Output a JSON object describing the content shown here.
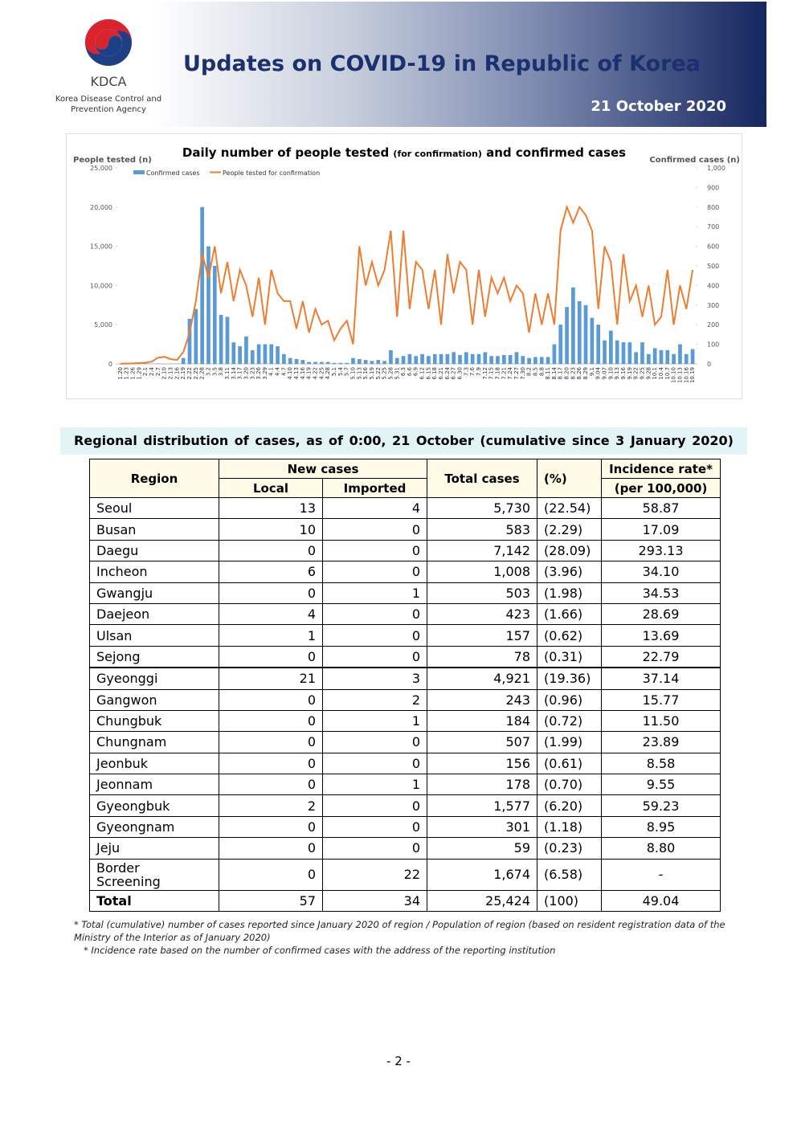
{
  "header": {
    "logo_text": "KDCA",
    "org_line1": "Korea Disease Control and",
    "org_line2": "Prevention Agency",
    "title": "Updates on COVID-19 in Republic of Korea",
    "date": "21 October 2020"
  },
  "chart_data": {
    "type": "combo",
    "title": "Daily number of people tested",
    "title_note": "(for confirmation)",
    "title_end": "and confirmed cases",
    "ylabel": "People tested (n)",
    "y2label": "Confirmed cases (n)",
    "categories": [
      "1.20",
      "1.23",
      "1.26",
      "1.29",
      "2.1",
      "2.4",
      "2.7",
      "2.10",
      "2.13",
      "2.16",
      "2.19",
      "2.22",
      "2.25",
      "2.28",
      "3.2",
      "3.5",
      "3.8",
      "3.11",
      "3.14",
      "3.17",
      "3.20",
      "3.23",
      "3.26",
      "3.29",
      "4.1",
      "4.4",
      "4.7",
      "4.10",
      "4.13",
      "4.16",
      "4.19",
      "4.22",
      "4.25",
      "4.28",
      "5.1",
      "5.4",
      "5.7",
      "5.10",
      "5.13",
      "5.16",
      "5.19",
      "5.22",
      "5.25",
      "5.28",
      "5.31",
      "6.3",
      "6.6",
      "6.9",
      "6.12",
      "6.15",
      "6.18",
      "6.21",
      "6.24",
      "6.27",
      "6.30",
      "7.3",
      "7.6",
      "7.9",
      "7.12",
      "7.15",
      "7.18",
      "7.21",
      "7.24",
      "7.27",
      "7.30",
      "8.2",
      "8.5",
      "8.8",
      "8.11",
      "8.14",
      "8.17",
      "8.20",
      "8.23",
      "8.26",
      "8.29",
      "9.1",
      "9.04",
      "9.07",
      "9.10",
      "9.13",
      "9.16",
      "9.19",
      "9.22",
      "9.25",
      "9.28",
      "10.1",
      "10.4",
      "10.7",
      "10.10",
      "10.13",
      "10.16",
      "10.19"
    ],
    "series": [
      {
        "name": "Confirmed cases",
        "color": "#5b9bd5",
        "mark": "bar",
        "axis": "y2",
        "values": [
          1,
          1,
          2,
          3,
          2,
          1,
          2,
          1,
          1,
          1,
          30,
          230,
          280,
          800,
          600,
          500,
          250,
          240,
          110,
          90,
          140,
          70,
          100,
          100,
          100,
          90,
          50,
          30,
          25,
          20,
          10,
          10,
          10,
          10,
          5,
          5,
          5,
          30,
          25,
          20,
          15,
          20,
          15,
          70,
          30,
          40,
          50,
          40,
          50,
          40,
          50,
          50,
          50,
          60,
          45,
          60,
          50,
          50,
          60,
          40,
          40,
          45,
          45,
          60,
          40,
          30,
          35,
          35,
          35,
          100,
          200,
          290,
          390,
          320,
          300,
          235,
          200,
          120,
          170,
          120,
          110,
          110,
          60,
          110,
          50,
          80,
          70,
          70,
          50,
          100,
          50,
          75
        ]
      },
      {
        "name": "People tested for confirmation",
        "color": "#ed7d31",
        "mark": "line",
        "axis": "y",
        "values": [
          20,
          40,
          60,
          100,
          150,
          300,
          800,
          900,
          600,
          500,
          1500,
          4000,
          8000,
          14000,
          11000,
          15000,
          9000,
          13000,
          8000,
          12000,
          10000,
          6000,
          11000,
          5000,
          12000,
          9000,
          8000,
          8000,
          4500,
          8000,
          4000,
          7000,
          5000,
          5500,
          3000,
          4500,
          5500,
          2500,
          15000,
          10000,
          13000,
          10000,
          12000,
          17000,
          6000,
          17000,
          7000,
          13000,
          12000,
          7000,
          12000,
          5000,
          14000,
          9000,
          13000,
          12000,
          5000,
          12000,
          6000,
          11000,
          9000,
          11000,
          8000,
          10000,
          9000,
          4000,
          9000,
          5000,
          9000,
          5000,
          17000,
          20000,
          18000,
          20000,
          19000,
          17000,
          7000,
          15000,
          13000,
          5000,
          14000,
          8000,
          10000,
          6000,
          10000,
          5000,
          6000,
          12000,
          5000,
          10000,
          7000,
          12000
        ]
      }
    ],
    "ylim": [
      0,
      25000
    ],
    "yticks": [
      0,
      {
        "value": 5000,
        "label": "5,000"
      },
      {
        "value": 10000,
        "label": "10,000"
      },
      {
        "value": 15000,
        "label": "15,000"
      },
      {
        "value": 20000,
        "label": "20,000"
      },
      {
        "value": 25000,
        "label": "25,000"
      }
    ],
    "y2lim": [
      0,
      1000
    ],
    "y2ticks": [
      0,
      100,
      200,
      300,
      400,
      500,
      600,
      700,
      800,
      900,
      {
        "value": 1000,
        "label": "1,000"
      }
    ],
    "legend": "top-left"
  },
  "table": {
    "caption": "Regional distribution of cases, as of 0:00, 21 October (cumulative since 3 January 2020)",
    "headers": {
      "region": "Region",
      "new_cases": "New cases",
      "local": "Local",
      "imported": "Imported",
      "total": "Total cases",
      "pct": "(%)",
      "incidence": "Incidence rate*",
      "incidence_unit": "(per 100,000)"
    },
    "rows": [
      [
        "Seoul",
        "13",
        "4",
        "5,730",
        "(22.54)",
        "58.87"
      ],
      [
        "Busan",
        "10",
        "0",
        "583",
        "(2.29)",
        "17.09"
      ],
      [
        "Daegu",
        "0",
        "0",
        "7,142",
        "(28.09)",
        "293.13"
      ],
      [
        "Incheon",
        "6",
        "0",
        "1,008",
        "(3.96)",
        "34.10"
      ],
      [
        "Gwangju",
        "0",
        "1",
        "503",
        "(1.98)",
        "34.53"
      ],
      [
        "Daejeon",
        "4",
        "0",
        "423",
        "(1.66)",
        "28.69"
      ],
      [
        "Ulsan",
        "1",
        "0",
        "157",
        "(0.62)",
        "13.69"
      ],
      [
        "Sejong",
        "0",
        "0",
        "78",
        "(0.31)",
        "22.79"
      ],
      [
        "Gyeonggi",
        "21",
        "3",
        "4,921",
        "(19.36)",
        "37.14"
      ],
      [
        "Gangwon",
        "0",
        "2",
        "243",
        "(0.96)",
        "15.77"
      ],
      [
        "Chungbuk",
        "0",
        "1",
        "184",
        "(0.72)",
        "11.50"
      ],
      [
        "Chungnam",
        "0",
        "0",
        "507",
        "(1.99)",
        "23.89"
      ],
      [
        "Jeonbuk",
        "0",
        "0",
        "156",
        "(0.61)",
        "8.58"
      ],
      [
        "Jeonnam",
        "0",
        "1",
        "178",
        "(0.70)",
        "9.55"
      ],
      [
        "Gyeongbuk",
        "2",
        "0",
        "1,577",
        "(6.20)",
        "59.23"
      ],
      [
        "Gyeongnam",
        "0",
        "0",
        "301",
        "(1.18)",
        "8.95"
      ],
      [
        "Jeju",
        "0",
        "0",
        "59",
        "(0.23)",
        "8.80"
      ],
      [
        "Border Screening",
        "0",
        "22",
        "1,674",
        "(6.58)",
        "-"
      ],
      [
        "Total",
        "57",
        "34",
        "25,424",
        "(100)",
        "49.04"
      ]
    ]
  },
  "footnotes": [
    "* Total (cumulative) number of cases reported since January 2020 of region / Population of region (based on resident registration data of the Ministry of the Interior as of January 2020)",
    "* Incidence rate based on the number of confirmed cases with the address of the reporting institution"
  ],
  "page_number": "- 2 -"
}
